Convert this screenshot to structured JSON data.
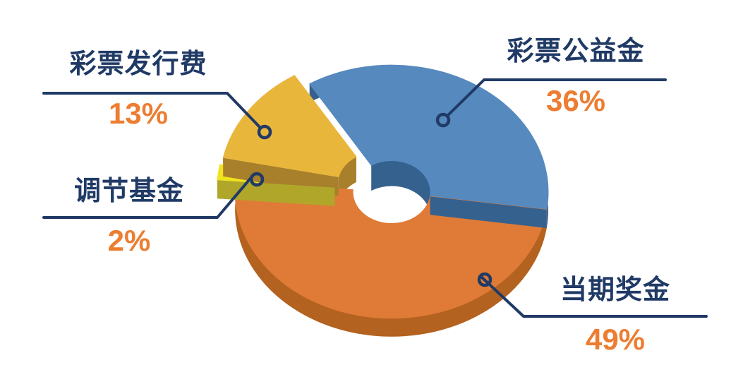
{
  "page": {
    "background": "#ffffff",
    "description": "3D exploded doughnut pie chart of lottery fund allocation"
  },
  "colors": {
    "label": "#203a66",
    "percent": "#ed7d31",
    "leader": "#203a66",
    "background": "#ffffff"
  },
  "chart_data": {
    "type": "pie",
    "variant": "3d-exploded-doughnut",
    "title": "",
    "unit": "%",
    "total": 100,
    "legend_position": "callout-labels",
    "slices": [
      {
        "label": "彩票公益金",
        "value": 36,
        "pct_label": "36%",
        "color": "#5689be",
        "side_color": "#35618f",
        "exploded": false
      },
      {
        "label": "彩票发行费",
        "value": 13,
        "pct_label": "13%",
        "color": "#e9b63c",
        "side_color": "#a87f2b",
        "exploded": true
      },
      {
        "label": "调节基金",
        "value": 2,
        "pct_label": "2%",
        "color": "#f0e31f",
        "side_color": "#b0a72a",
        "exploded": true
      },
      {
        "label": "当期奖金",
        "value": 49,
        "pct_label": "49%",
        "color": "#df7b36",
        "side_color": "#b3621f",
        "exploded": false
      }
    ]
  }
}
